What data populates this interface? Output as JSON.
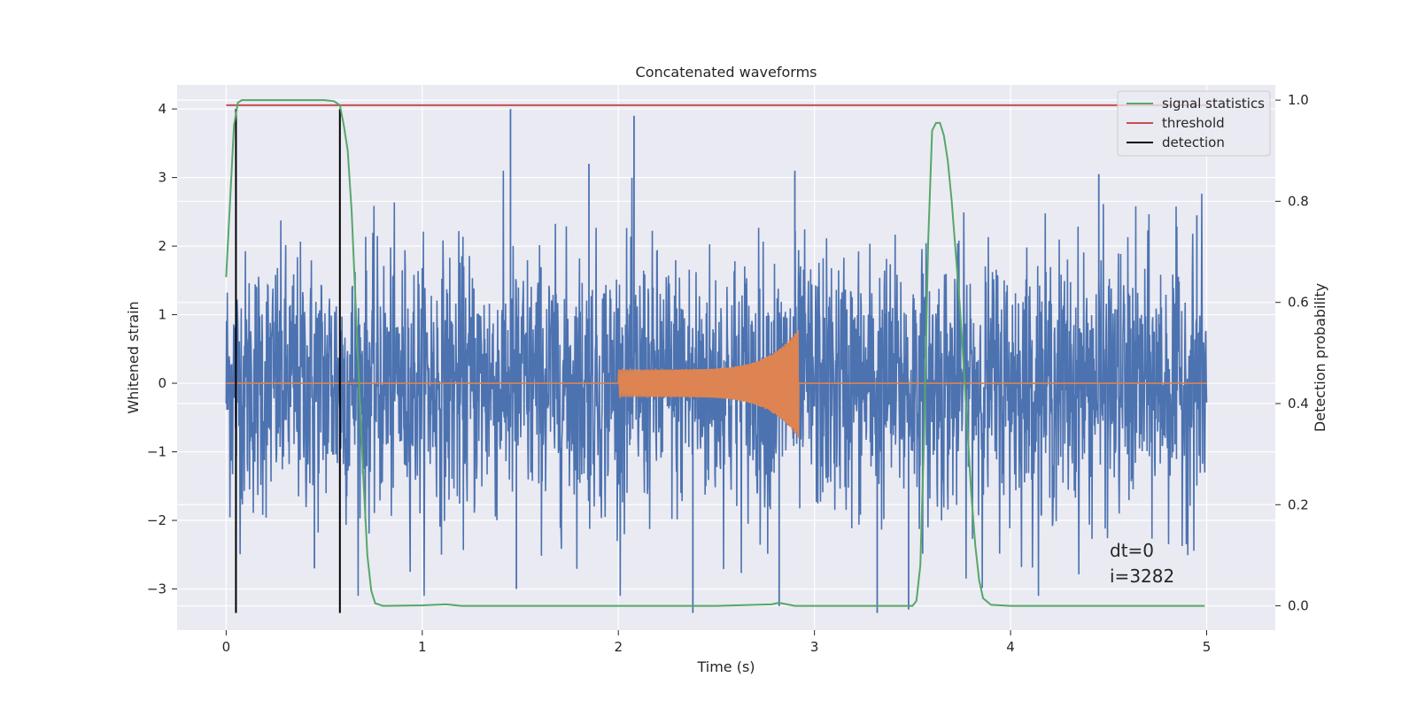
{
  "chart_data": {
    "type": "line",
    "title": "Concatenated waveforms",
    "xlabel": "Time (s)",
    "ylabel": "Whitened strain",
    "y2label": "Detection probability",
    "xlim": [
      -0.25,
      5.35
    ],
    "ylim": [
      -3.6,
      4.35
    ],
    "y2lim": [
      -0.048,
      1.03
    ],
    "x_ticks": [
      0,
      1,
      2,
      3,
      4,
      5
    ],
    "x_tick_labels": [
      "0",
      "1",
      "2",
      "3",
      "4",
      "5"
    ],
    "y_ticks": [
      -3,
      -2,
      -1,
      0,
      1,
      2,
      3,
      4
    ],
    "y_tick_labels": [
      "−3",
      "−2",
      "−1",
      "0",
      "1",
      "2",
      "3",
      "4"
    ],
    "y2_ticks": [
      0,
      0.2,
      0.4,
      0.6,
      0.8,
      1.0
    ],
    "y2_tick_labels": [
      "0.0",
      "0.2",
      "0.4",
      "0.6",
      "0.8",
      "1.0"
    ],
    "grid": true,
    "legend_position": "top-right",
    "colors": {
      "background": "#eaeaf2",
      "grid": "#ffffff",
      "strain": "#4c72b0",
      "waveform": "#dd8452",
      "signal_statistics": "#55a868",
      "threshold": "#c44e52",
      "detection": "#000000"
    },
    "series": [
      {
        "name": "signal statistics",
        "axis": "right",
        "x": [
          0,
          0.02,
          0.04,
          0.06,
          0.08,
          0.1,
          0.2,
          0.3,
          0.4,
          0.5,
          0.55,
          0.58,
          0.6,
          0.62,
          0.64,
          0.66,
          0.68,
          0.7,
          0.72,
          0.74,
          0.76,
          0.8,
          1.0,
          1.12,
          1.2,
          1.5,
          2.0,
          2.5,
          2.78,
          2.82,
          2.86,
          2.9,
          3.0,
          3.5,
          3.52,
          3.54,
          3.56,
          3.58,
          3.6,
          3.62,
          3.64,
          3.66,
          3.68,
          3.7,
          3.72,
          3.74,
          3.76,
          3.78,
          3.8,
          3.82,
          3.84,
          3.86,
          3.9,
          4.0,
          4.5,
          4.99
        ],
        "values": [
          0.65,
          0.8,
          0.95,
          0.995,
          1.0,
          1.0,
          1.0,
          1.0,
          1.0,
          1.0,
          0.998,
          0.99,
          0.95,
          0.9,
          0.78,
          0.6,
          0.42,
          0.25,
          0.1,
          0.03,
          0.005,
          0.0,
          0.001,
          0.003,
          0.0,
          0.0,
          0.0,
          0.0,
          0.003,
          0.006,
          0.003,
          0.0,
          0.0,
          0.0,
          0.01,
          0.08,
          0.35,
          0.72,
          0.94,
          0.955,
          0.955,
          0.93,
          0.88,
          0.8,
          0.7,
          0.6,
          0.48,
          0.35,
          0.22,
          0.12,
          0.05,
          0.015,
          0.002,
          0.0,
          0.0,
          0.0
        ]
      },
      {
        "name": "threshold",
        "axis": "right",
        "x": [
          0,
          5
        ],
        "values": [
          0.99,
          0.99
        ]
      },
      {
        "name": "detection",
        "axis": "left",
        "x": [
          0.05,
          0.58
        ],
        "y_range": [
          -3.35,
          4.0
        ]
      },
      {
        "name": "",
        "axis": "left",
        "description_kind": "noise",
        "x_range": [
          0,
          5
        ],
        "envelope": [
          -3.35,
          4.0
        ],
        "spikes": [
          {
            "x": 1.45,
            "y": 4.0
          },
          {
            "x": 2.08,
            "y": 3.9
          },
          {
            "x": 2.38,
            "y": -3.35
          },
          {
            "x": 3.32,
            "y": -3.35
          },
          {
            "x": 3.48,
            "y": -3.3
          },
          {
            "x": 2.82,
            "y": -3.25
          },
          {
            "x": 1.48,
            "y": -3.0
          },
          {
            "x": 1.85,
            "y": 3.2
          },
          {
            "x": 2.9,
            "y": 3.1
          },
          {
            "x": 4.45,
            "y": 3.05
          },
          {
            "x": 4.95,
            "y": 2.45
          },
          {
            "x": 0.45,
            "y": -2.7
          }
        ]
      },
      {
        "name": "",
        "axis": "left",
        "description_kind": "chirp",
        "x_range": [
          2.0,
          2.92
        ],
        "amplitude_start": 0.2,
        "amplitude_end": 0.8
      }
    ],
    "annotations": [
      "dt=0",
      "i=3282"
    ]
  },
  "legend": {
    "items": [
      {
        "label": "signal statistics",
        "color": "#55a868"
      },
      {
        "label": "threshold",
        "color": "#c44e52"
      },
      {
        "label": "detection",
        "color": "#000000"
      }
    ]
  }
}
